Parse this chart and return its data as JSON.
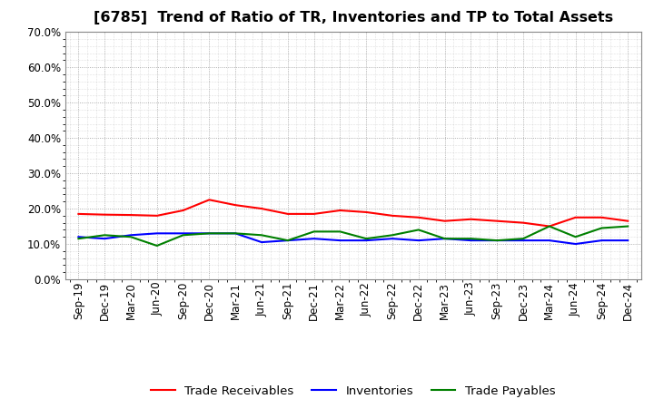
{
  "title": "[6785]  Trend of Ratio of TR, Inventories and TP to Total Assets",
  "labels": [
    "Sep-19",
    "Dec-19",
    "Mar-20",
    "Jun-20",
    "Sep-20",
    "Dec-20",
    "Mar-21",
    "Jun-21",
    "Sep-21",
    "Dec-21",
    "Mar-22",
    "Jun-22",
    "Sep-22",
    "Dec-22",
    "Mar-23",
    "Jun-23",
    "Sep-23",
    "Dec-23",
    "Mar-24",
    "Jun-24",
    "Sep-24",
    "Dec-24"
  ],
  "trade_receivables": [
    18.5,
    18.3,
    18.2,
    18.0,
    19.5,
    22.5,
    21.0,
    20.0,
    18.5,
    18.5,
    19.5,
    19.0,
    18.0,
    17.5,
    16.5,
    17.0,
    16.5,
    16.0,
    15.0,
    17.5,
    17.5,
    16.5
  ],
  "inventories": [
    12.0,
    11.5,
    12.5,
    13.0,
    13.0,
    13.0,
    13.0,
    10.5,
    11.0,
    11.5,
    11.0,
    11.0,
    11.5,
    11.0,
    11.5,
    11.0,
    11.0,
    11.0,
    11.0,
    10.0,
    11.0,
    11.0
  ],
  "trade_payables": [
    11.5,
    12.5,
    12.0,
    9.5,
    12.5,
    13.0,
    13.0,
    12.5,
    11.0,
    13.5,
    13.5,
    11.5,
    12.5,
    14.0,
    11.5,
    11.5,
    11.0,
    11.5,
    15.0,
    12.0,
    14.5,
    15.0
  ],
  "ylim": [
    0,
    70
  ],
  "yticks": [
    0,
    10,
    20,
    30,
    40,
    50,
    60,
    70
  ],
  "line_colors": {
    "trade_receivables": "#ff0000",
    "inventories": "#0000ff",
    "trade_payables": "#008000"
  },
  "legend_labels": [
    "Trade Receivables",
    "Inventories",
    "Trade Payables"
  ],
  "background_color": "#ffffff",
  "plot_bg_color": "#ffffff",
  "grid_color": "#999999",
  "title_fontsize": 11.5,
  "tick_fontsize": 8.5,
  "legend_fontsize": 9.5
}
